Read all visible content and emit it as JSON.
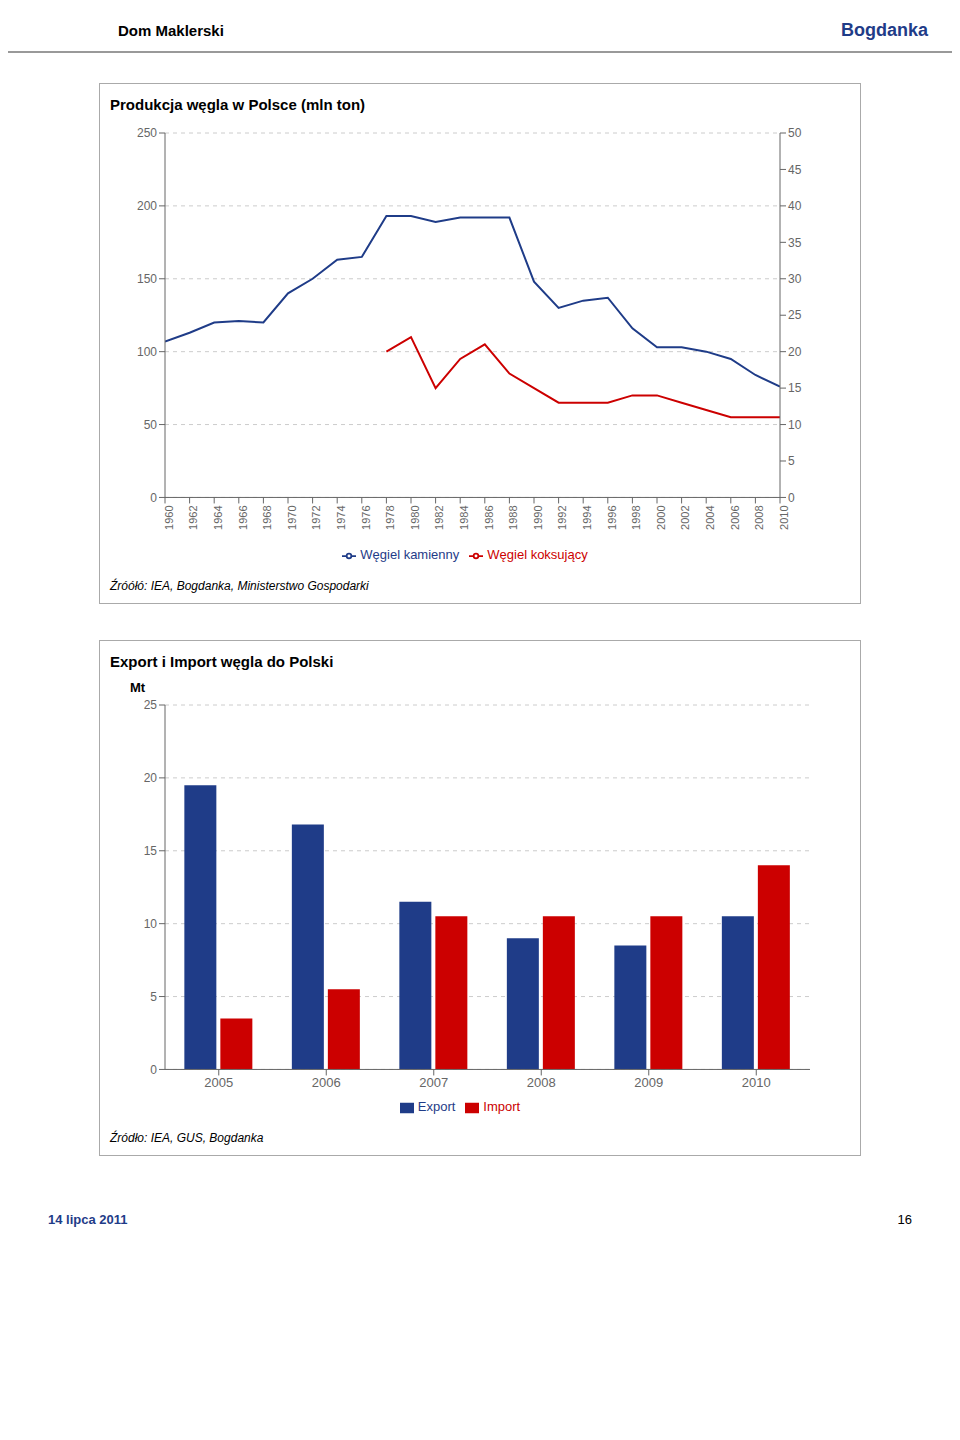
{
  "annotations": [
    "Dom Maklerski",
    "Bogdanka",
    "14 lipca 2011",
    "16"
  ],
  "chart_data": [
    {
      "type": "line",
      "title": "Produkcja węgla w Polsce (mln ton)",
      "annotations": [
        "Źróółó: IEA, Bogdanka, Ministerstwo  Gospodarki"
      ],
      "x": [
        1960,
        1962,
        1964,
        1966,
        1968,
        1970,
        1972,
        1974,
        1976,
        1978,
        1980,
        1982,
        1984,
        1986,
        1988,
        1990,
        1992,
        1994,
        1996,
        1998,
        2000,
        2002,
        2004,
        2006,
        2008,
        2010
      ],
      "series": [
        {
          "name": "Węgiel kamienny",
          "color": "#1f3c88",
          "values": [
            107,
            113,
            120,
            121,
            120,
            140,
            150,
            163,
            165,
            193,
            193,
            189,
            192,
            192,
            192,
            148,
            130,
            135,
            137,
            116,
            103,
            103,
            100,
            95,
            84,
            76
          ]
        },
        {
          "name": "Węgiel koksujący",
          "color": "#cc0000",
          "axis": "y2",
          "values": [
            null,
            null,
            null,
            null,
            null,
            null,
            null,
            null,
            null,
            20,
            22,
            15,
            19,
            21,
            17,
            15,
            13,
            13,
            13,
            14,
            14,
            13,
            12,
            11,
            11,
            11
          ]
        }
      ],
      "xlim": [
        1960,
        2010
      ],
      "xticks": [
        1960,
        1962,
        1964,
        1966,
        1968,
        1970,
        1972,
        1974,
        1976,
        1978,
        1980,
        1982,
        1984,
        1986,
        1988,
        1990,
        1992,
        1994,
        1996,
        1998,
        2000,
        2002,
        2004,
        2006,
        2008,
        2010
      ],
      "ylim": [
        0,
        250
      ],
      "yticks": [
        0,
        50,
        100,
        150,
        200,
        250
      ],
      "y2lim": [
        0,
        50
      ],
      "y2ticks": [
        0,
        5,
        10,
        15,
        20,
        25,
        30,
        35,
        40,
        45,
        50
      ],
      "grid": true,
      "legend": "bottom"
    },
    {
      "type": "bar",
      "title": "Export i Import węgla do Polski",
      "y_label": "Mt",
      "annotations": [
        "Źródło: IEA, GUS, Bogdanka"
      ],
      "categories": [
        "2005",
        "2006",
        "2007",
        "2008",
        "2009",
        "2010"
      ],
      "series": [
        {
          "name": "Export",
          "color": "#1f3c88",
          "values": [
            19.5,
            16.8,
            11.5,
            9.0,
            8.5,
            10.5
          ]
        },
        {
          "name": "Import",
          "color": "#cc0000",
          "values": [
            3.5,
            5.5,
            10.5,
            10.5,
            10.5,
            14.0
          ]
        }
      ],
      "ylim": [
        0,
        25
      ],
      "yticks": [
        0,
        5,
        10,
        15,
        20,
        25
      ],
      "grid": true,
      "legend": "bottom"
    }
  ]
}
